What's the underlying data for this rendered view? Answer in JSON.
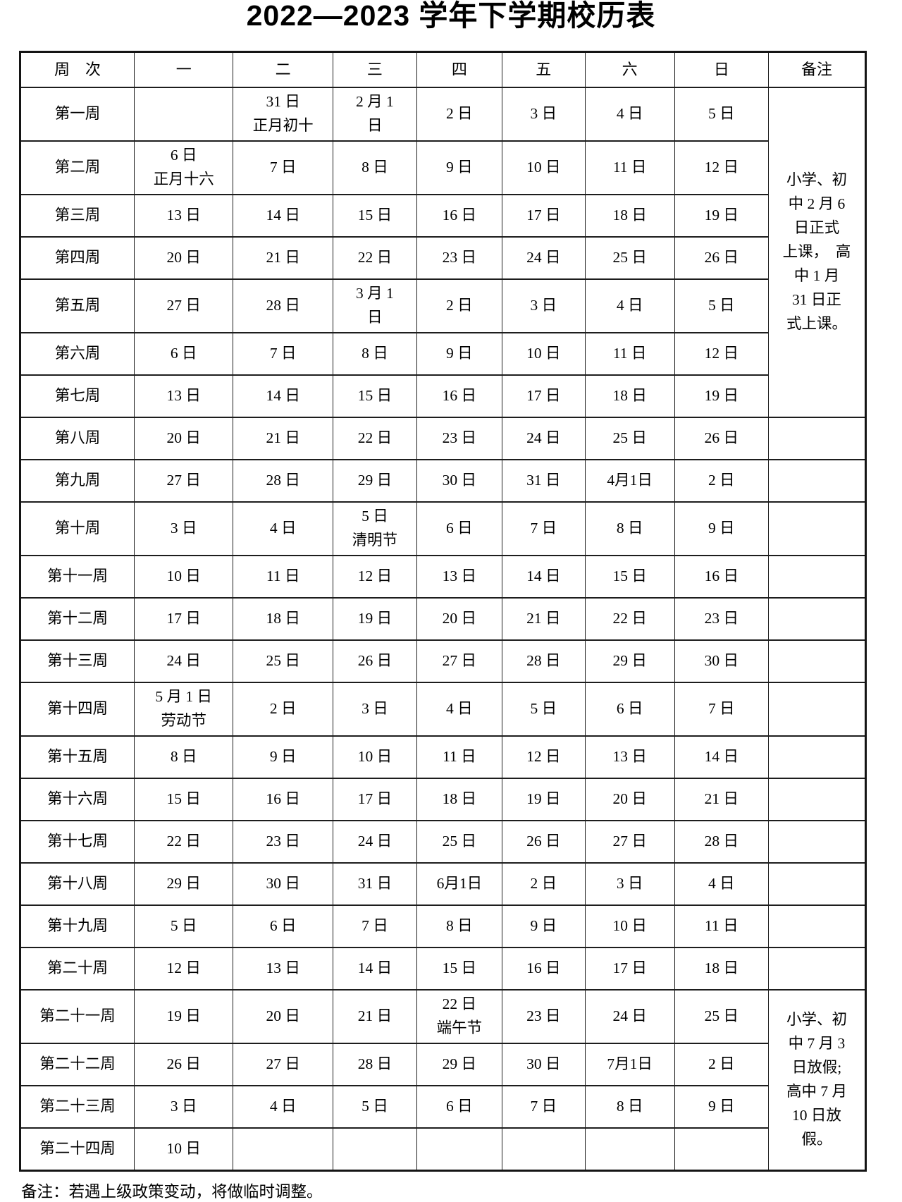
{
  "title": "2022—2023 学年下学期校历表",
  "table": {
    "columns": [
      "周　次",
      "一",
      "二",
      "三",
      "四",
      "五",
      "六",
      "日",
      "备注"
    ],
    "rows": [
      {
        "week": "第一周",
        "days": [
          "",
          "31 日\n正月初十",
          "2 月 1\n日",
          "2 日",
          "3 日",
          "4 日",
          "5 日"
        ]
      },
      {
        "week": "第二周",
        "days": [
          "6 日\n正月十六",
          "7 日\n",
          "8 日",
          "9 日",
          "10 日",
          "11 日",
          "12 日"
        ]
      },
      {
        "week": "第三周",
        "days": [
          "13 日",
          "14 日",
          "15 日",
          "16 日",
          "17 日",
          "18 日",
          "19 日"
        ]
      },
      {
        "week": "第四周",
        "days": [
          "20 日",
          "21 日",
          "22 日",
          "23 日",
          "24 日",
          "25 日",
          "26 日"
        ]
      },
      {
        "week": "第五周",
        "days": [
          "27 日",
          "28 日",
          "3 月 1\n日",
          "2 日",
          "3 日",
          "4 日",
          "5 日"
        ]
      },
      {
        "week": "第六周",
        "days": [
          "6 日",
          "7 日",
          "8 日",
          "9 日",
          "10 日",
          "11 日",
          "12 日"
        ]
      },
      {
        "week": "第七周",
        "days": [
          "13 日",
          "14 日",
          "15 日",
          "16 日",
          "17 日",
          "18 日",
          "19 日"
        ]
      },
      {
        "week": "第八周",
        "days": [
          "20 日",
          "21 日",
          "22 日",
          "23 日",
          "24 日",
          "25 日",
          "26 日"
        ]
      },
      {
        "week": "第九周",
        "days": [
          "27 日",
          "28 日",
          "29 日",
          "30 日",
          "31 日",
          "4月1日",
          "2 日"
        ]
      },
      {
        "week": "第十周",
        "days": [
          "3 日",
          "4 日",
          "5 日\n清明节",
          "6 日",
          "7 日",
          "8 日",
          "9 日"
        ]
      },
      {
        "week": "第十一周",
        "days": [
          "10 日",
          "11 日",
          "12 日",
          "13 日",
          "14 日",
          "15 日",
          "16 日"
        ]
      },
      {
        "week": "第十二周",
        "days": [
          "17 日",
          "18 日",
          "19 日",
          "20 日",
          "21 日",
          "22 日",
          "23 日"
        ]
      },
      {
        "week": "第十三周",
        "days": [
          "24 日",
          "25 日",
          "26 日",
          "27 日",
          "28 日",
          "29 日",
          "30 日"
        ]
      },
      {
        "week": "第十四周",
        "days": [
          "5 月 1 日\n劳动节",
          "2 日",
          "3 日",
          "4 日",
          "5 日",
          "6 日",
          "7 日"
        ]
      },
      {
        "week": "第十五周",
        "days": [
          "8 日",
          "9 日",
          "10 日",
          "11 日",
          "12 日",
          "13 日",
          "14 日"
        ]
      },
      {
        "week": "第十六周",
        "days": [
          "15 日",
          "16 日",
          "17 日",
          "18 日",
          "19 日",
          "20 日",
          "21 日"
        ]
      },
      {
        "week": "第十七周",
        "days": [
          "22 日",
          "23 日",
          "24 日",
          "25 日",
          "26 日",
          "27 日",
          "28 日"
        ]
      },
      {
        "week": "第十八周",
        "days": [
          "29 日",
          "30 日",
          "31 日",
          "6月1日",
          "2 日",
          "3 日",
          "4 日"
        ]
      },
      {
        "week": "第十九周",
        "days": [
          "5 日",
          "6 日",
          "7 日",
          "8 日",
          "9 日",
          "10 日",
          "11 日"
        ]
      },
      {
        "week": "第二十周",
        "days": [
          "12 日",
          "13 日",
          "14 日",
          "15 日",
          "16 日",
          "17 日",
          "18 日"
        ]
      },
      {
        "week": "第二十一周",
        "days": [
          "19 日",
          "20 日",
          "21 日",
          "22 日\n端午节",
          "23 日",
          "24 日",
          "25 日"
        ]
      },
      {
        "week": "第二十二周",
        "days": [
          "26 日",
          "27 日",
          "28 日",
          "29 日",
          "30 日",
          "7月1日",
          "2 日"
        ]
      },
      {
        "week": "第二十三周",
        "days": [
          "3 日",
          "4 日",
          "5 日",
          "6 日",
          "7 日",
          "8 日",
          "9 日"
        ]
      },
      {
        "week": "第二十四周",
        "days": [
          "10 日",
          "",
          "",
          "",
          "",
          "",
          ""
        ]
      }
    ],
    "remarks": [
      {
        "row_start": 0,
        "row_span": 7,
        "text": "小学、初\n中 2 月 6\n日正式\n上课，　高\n中 1 月\n31 日正\n式上课。"
      },
      {
        "row_start": 20,
        "row_span": 4,
        "text": "小学、初\n中 7 月 3\n日放假;\n高中 7 月\n10 日放\n假。"
      }
    ]
  },
  "footer_note": "备注：若遇上级政策变动，将做临时调整。"
}
